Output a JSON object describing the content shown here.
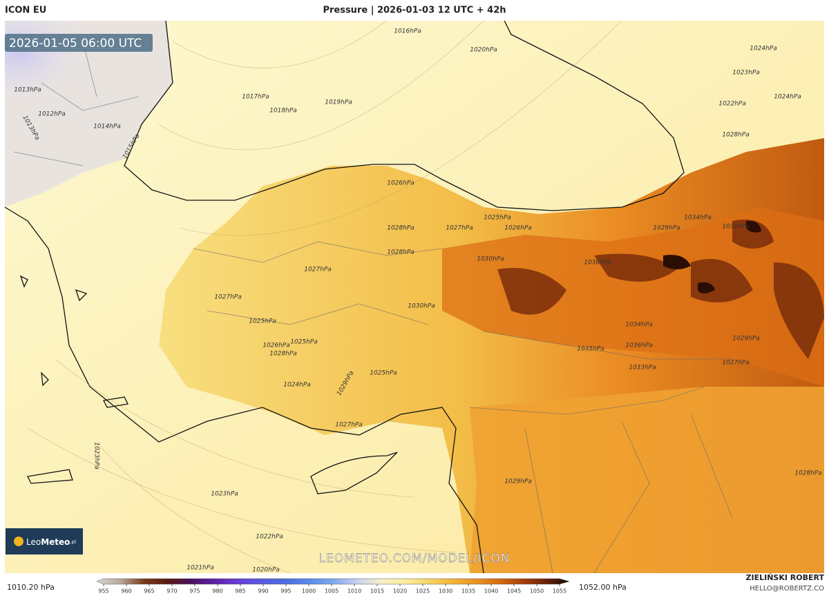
{
  "header": {
    "model": "ICON EU",
    "title": "Pressure | 2026-01-03 12 UTC + 42h"
  },
  "timestamp": "2026-01-05 06:00 UTC",
  "watermark": "LEOMETEO.COM/MODEL/ICON",
  "logo": {
    "brand_light": "Leo",
    "brand_bold": "Meteo",
    "suffix": ".pl"
  },
  "isobar_labels": [
    "1013hPa",
    "1012hPa",
    "1013hPa",
    "1014hPa",
    "1015hPa",
    "1016hPa",
    "1017hPa",
    "1018hPa",
    "1019hPa",
    "1020hPa",
    "1024hPa",
    "1023hPa",
    "1022hPa",
    "1024hPa",
    "1028hPa",
    "1026hPa",
    "1025hPa",
    "1026hPa",
    "1027hPa",
    "1028hPa",
    "1028hPa",
    "1027hPa",
    "1027hPa",
    "1025hPa",
    "1025hPa",
    "1026hPa",
    "1028hPa",
    "1030hPa",
    "1030hPa",
    "1029hPa",
    "1025hPa",
    "1024hPa",
    "1027hPa",
    "1023hPa",
    "1022hPa",
    "1021hPa",
    "1020hPa",
    "1029hPa",
    "1033hPa",
    "1036hPa",
    "1035hPa",
    "1034hPa",
    "1036hPa",
    "1029hPa",
    "1034hPa",
    "1029hPa",
    "1027hPa",
    "1028hPa",
    "1031hPa",
    "1023hPa"
  ],
  "legend": {
    "min_label": "1010.20 hPa",
    "max_label": "1052.00 hPa",
    "ticks": [
      955,
      960,
      965,
      970,
      975,
      980,
      985,
      990,
      995,
      1000,
      1005,
      1010,
      1015,
      1020,
      1025,
      1030,
      1035,
      1040,
      1045,
      1050,
      1055
    ],
    "colors": [
      "#d9d9d9",
      "#b8a89a",
      "#7a3b1a",
      "#5a1a10",
      "#4b1060",
      "#5c22a8",
      "#6a3fd6",
      "#5a5ae0",
      "#4b6fe0",
      "#5b8be8",
      "#7fa8ee",
      "#c8cff2",
      "#f4f0c8",
      "#fbefa0",
      "#f7d668",
      "#f3b73c",
      "#ec9526",
      "#d96c12",
      "#a9400a",
      "#6b2208",
      "#1a0a05"
    ]
  },
  "author": {
    "name": "ZIELIŃSKI ROBERT",
    "email": "HELLO@ROBERTZ.CO"
  }
}
